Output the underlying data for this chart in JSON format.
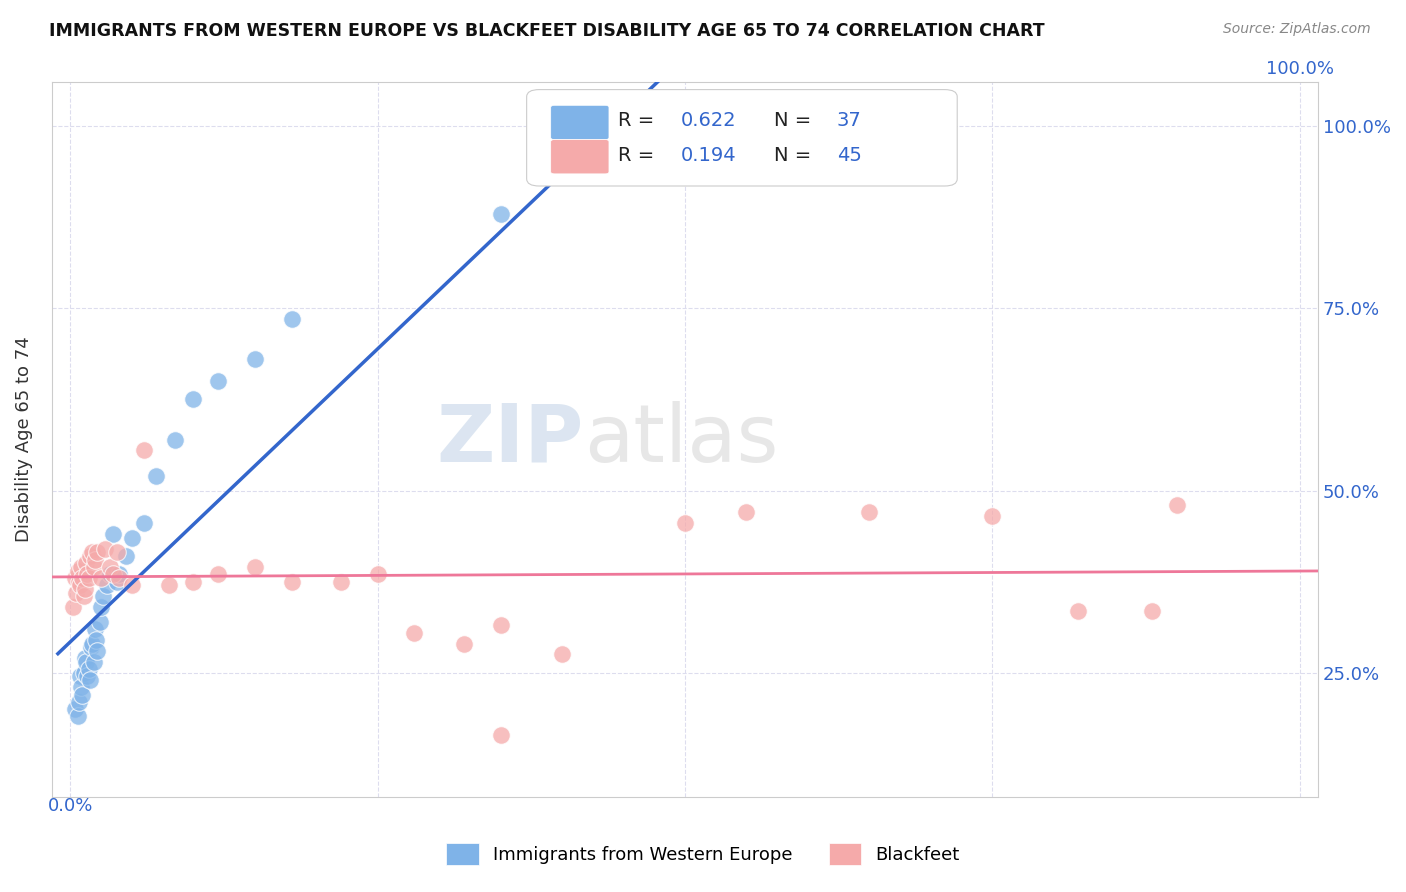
{
  "title": "IMMIGRANTS FROM WESTERN EUROPE VS BLACKFEET DISABILITY AGE 65 TO 74 CORRELATION CHART",
  "source": "Source: ZipAtlas.com",
  "ylabel": "Disability Age 65 to 74",
  "r1": 0.622,
  "n1": 37,
  "r2": 0.194,
  "n2": 45,
  "legend_label1": "Immigrants from Western Europe",
  "legend_label2": "Blackfeet",
  "color1": "#7FB3E8",
  "color2": "#F5AAAA",
  "line_color1": "#3366CC",
  "line_color2": "#EE7799",
  "text_color_blue": "#3366CC",
  "text_color_dark": "#222222",
  "background_color": "#FFFFFF",
  "grid_color": "#DDDDEE",
  "blue_x": [
    0.004,
    0.006,
    0.007,
    0.008,
    0.009,
    0.01,
    0.011,
    0.012,
    0.013,
    0.014,
    0.015,
    0.016,
    0.017,
    0.018,
    0.019,
    0.02,
    0.021,
    0.022,
    0.024,
    0.025,
    0.027,
    0.03,
    0.032,
    0.035,
    0.038,
    0.04,
    0.045,
    0.05,
    0.06,
    0.07,
    0.085,
    0.1,
    0.12,
    0.15,
    0.18,
    0.35,
    0.55
  ],
  "blue_y": [
    0.2,
    0.19,
    0.21,
    0.245,
    0.23,
    0.22,
    0.25,
    0.27,
    0.265,
    0.245,
    0.255,
    0.24,
    0.285,
    0.29,
    0.265,
    0.31,
    0.295,
    0.28,
    0.32,
    0.34,
    0.355,
    0.37,
    0.385,
    0.44,
    0.375,
    0.385,
    0.41,
    0.435,
    0.455,
    0.52,
    0.57,
    0.625,
    0.65,
    0.68,
    0.735,
    0.88,
    0.96
  ],
  "pink_x": [
    0.002,
    0.004,
    0.005,
    0.006,
    0.007,
    0.008,
    0.009,
    0.01,
    0.011,
    0.012,
    0.013,
    0.014,
    0.015,
    0.016,
    0.018,
    0.019,
    0.02,
    0.022,
    0.025,
    0.028,
    0.032,
    0.035,
    0.038,
    0.04,
    0.05,
    0.06,
    0.08,
    0.1,
    0.12,
    0.15,
    0.18,
    0.22,
    0.25,
    0.28,
    0.32,
    0.35,
    0.4,
    0.5,
    0.55,
    0.65,
    0.75,
    0.82,
    0.88,
    0.9,
    0.35
  ],
  "pink_y": [
    0.34,
    0.38,
    0.36,
    0.39,
    0.375,
    0.37,
    0.395,
    0.38,
    0.355,
    0.365,
    0.4,
    0.385,
    0.38,
    0.41,
    0.415,
    0.395,
    0.405,
    0.415,
    0.38,
    0.42,
    0.395,
    0.385,
    0.415,
    0.38,
    0.37,
    0.555,
    0.37,
    0.375,
    0.385,
    0.395,
    0.375,
    0.375,
    0.385,
    0.305,
    0.29,
    0.315,
    0.275,
    0.455,
    0.47,
    0.47,
    0.465,
    0.335,
    0.335,
    0.48,
    0.165
  ],
  "xlim": [
    -0.015,
    1.015
  ],
  "ylim": [
    0.08,
    1.06
  ],
  "xticks": [
    0.0,
    0.25,
    0.5,
    0.75,
    1.0
  ],
  "yticks": [
    0.25,
    0.5,
    0.75,
    1.0
  ]
}
